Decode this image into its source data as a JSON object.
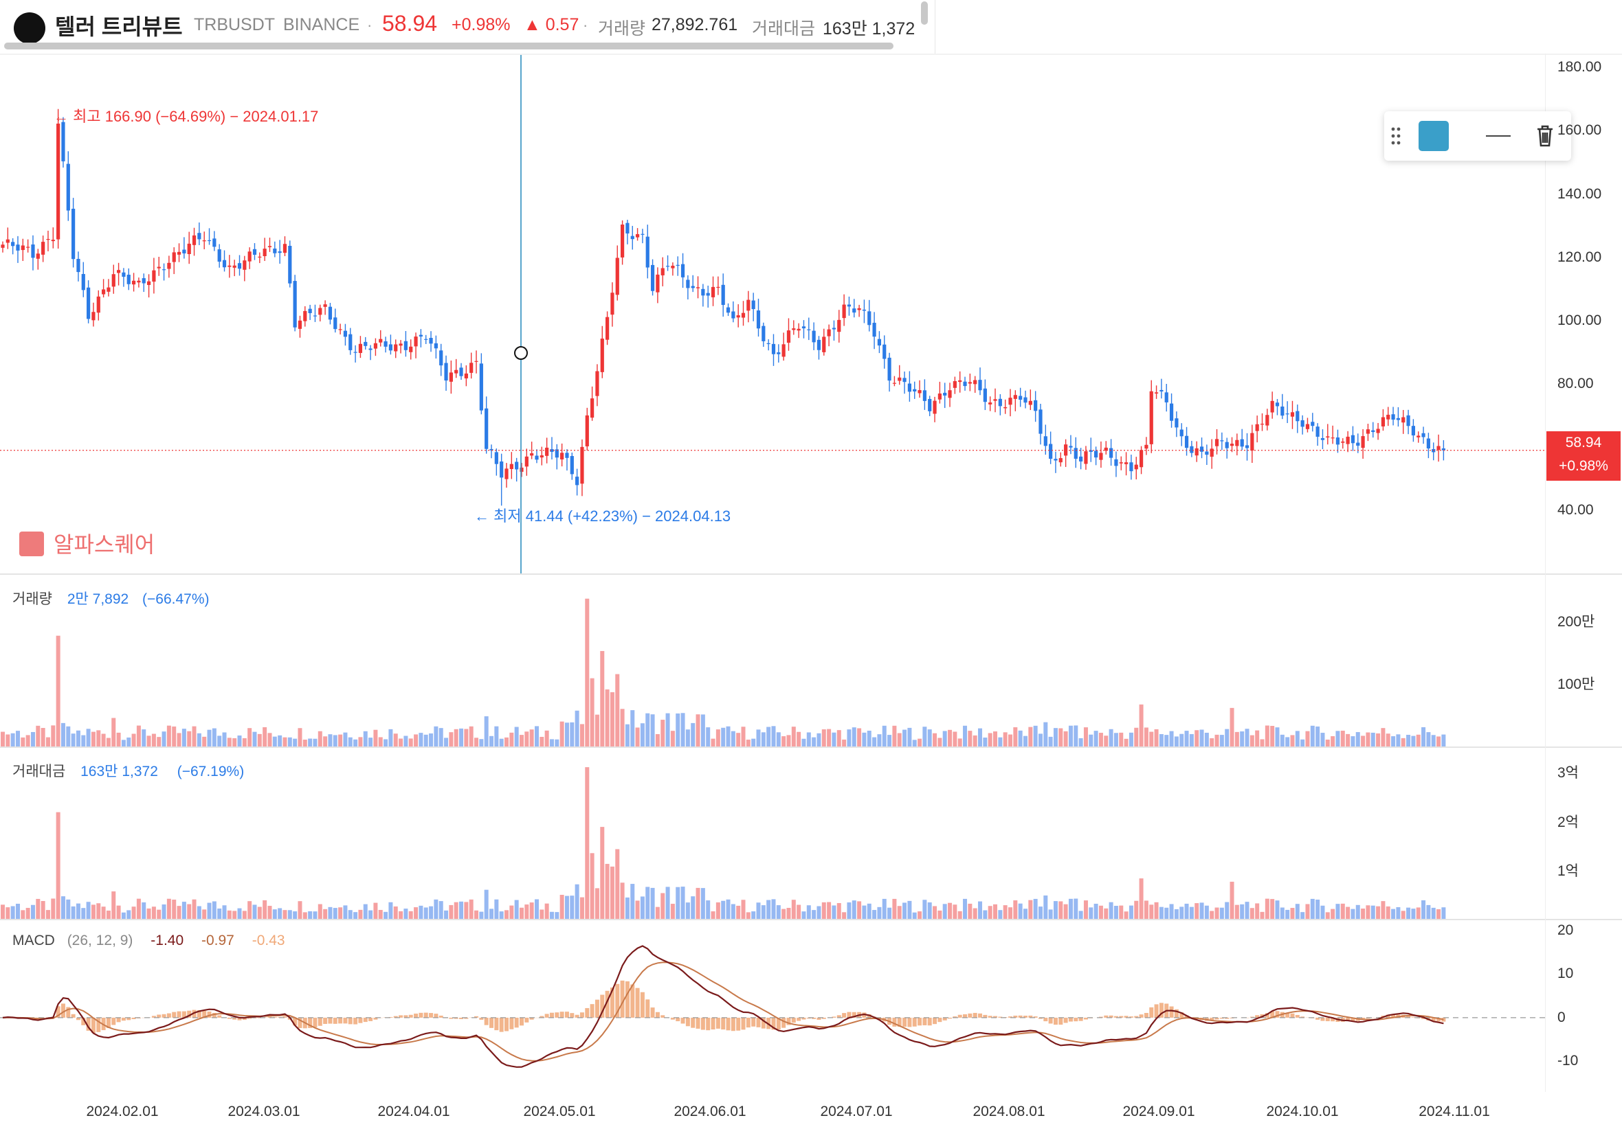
{
  "header": {
    "name": "텔러 트리뷰트",
    "symbol": "TRBUSDT",
    "exchange": "BINANCE",
    "price": "58.94",
    "change_pct": "+0.98%",
    "change_abs": "▲ 0.57",
    "vol_label": "거래량",
    "vol_value": "27,892.761",
    "amount_label": "거래대금",
    "amount_value": "163만 1,372"
  },
  "annotations": {
    "high": "← 최고 166.90 (−64.69%) − 2024.01.17",
    "low": "← 최저 41.44 (+42.23%) − 2024.04.13"
  },
  "price_tag": {
    "price": "58.94",
    "change": "+0.98%"
  },
  "watermark": {
    "icon": "alpha-square-icon",
    "text": "알파스퀘어"
  },
  "toolbar": {
    "icons": [
      "drag-handle-icon",
      "color-swatch",
      "line-style-icon",
      "trash-icon"
    ],
    "swatch_color": "#3a9fc9"
  },
  "panels": {
    "volume": {
      "label": "거래량",
      "value": "2만 7,892",
      "change": "(−66.47%)"
    },
    "amount": {
      "label": "거래대금",
      "value": "163만 1,372",
      "change": "(−67.19%)"
    },
    "macd": {
      "label": "MACD",
      "params": "(26, 12, 9)",
      "v1": "-1.40",
      "v2": "-0.97",
      "v3": "-0.43"
    }
  },
  "colors": {
    "up": "#ee3535",
    "down": "#2b7be6",
    "up_light": "#f5a0a0",
    "down_light": "#96b8f2",
    "macd": "#7a1a1a",
    "signal": "#c8794a",
    "hist": "#f0a878",
    "crosshair": "#2e8fbf"
  },
  "chart_data": {
    "type": "candlestick",
    "x_ticks": [
      "2024.02.01",
      "2024.03.01",
      "2024.04.01",
      "2024.05.01",
      "2024.06.01",
      "2024.07.01",
      "2024.08.01",
      "2024.09.01",
      "2024.10.01",
      "2024.11.01"
    ],
    "price_axis": {
      "ticks": [
        "180.00",
        "160.00",
        "140.00",
        "120.00",
        "100.00",
        "80.00",
        "40.00"
      ],
      "ylim": [
        20,
        184
      ]
    },
    "volume_axis": {
      "ticks": [
        "200만",
        "100만"
      ],
      "ylim": [
        0,
        2500000
      ]
    },
    "amount_axis": {
      "ticks": [
        "3억",
        "2억",
        "1억"
      ],
      "ylim": [
        0,
        320000000
      ]
    },
    "macd_axis": {
      "ticks": [
        "20",
        "10",
        "0",
        "-10"
      ],
      "ylim": [
        -17,
        22
      ]
    },
    "close_anchors": [
      [
        0,
        124
      ],
      [
        6,
        121
      ],
      [
        10,
        128
      ],
      [
        11,
        163
      ],
      [
        14,
        120
      ],
      [
        17,
        101
      ],
      [
        22,
        116
      ],
      [
        27,
        110
      ],
      [
        33,
        120
      ],
      [
        40,
        126
      ],
      [
        45,
        117
      ],
      [
        50,
        120
      ],
      [
        56,
        124
      ],
      [
        58,
        100
      ],
      [
        64,
        103
      ],
      [
        70,
        91
      ],
      [
        78,
        92
      ],
      [
        84,
        95
      ],
      [
        88,
        82
      ],
      [
        94,
        87
      ],
      [
        96,
        59
      ],
      [
        99,
        51
      ],
      [
        105,
        58
      ],
      [
        111,
        57
      ],
      [
        114,
        50
      ],
      [
        116,
        70
      ],
      [
        120,
        100
      ],
      [
        123,
        128
      ],
      [
        127,
        127
      ],
      [
        129,
        111
      ],
      [
        132,
        118
      ],
      [
        137,
        110
      ],
      [
        142,
        110
      ],
      [
        145,
        98
      ],
      [
        148,
        106
      ],
      [
        153,
        89
      ],
      [
        158,
        98
      ],
      [
        162,
        93
      ],
      [
        167,
        103
      ],
      [
        170,
        103
      ],
      [
        173,
        97
      ],
      [
        176,
        83
      ],
      [
        180,
        78
      ],
      [
        184,
        73
      ],
      [
        188,
        80
      ],
      [
        192,
        80
      ],
      [
        196,
        74
      ],
      [
        202,
        76
      ],
      [
        205,
        70
      ],
      [
        208,
        55
      ],
      [
        211,
        61
      ],
      [
        214,
        56
      ],
      [
        219,
        58
      ],
      [
        224,
        54
      ],
      [
        227,
        59
      ],
      [
        228,
        78
      ],
      [
        231,
        74
      ],
      [
        234,
        63
      ],
      [
        238,
        57
      ],
      [
        242,
        61
      ],
      [
        247,
        62
      ],
      [
        252,
        72
      ],
      [
        258,
        69
      ],
      [
        263,
        61
      ],
      [
        268,
        62
      ],
      [
        272,
        66
      ],
      [
        276,
        69
      ],
      [
        280,
        66
      ],
      [
        283,
        61
      ],
      [
        286,
        58
      ]
    ],
    "high": {
      "value": 166.9,
      "date": "2024.01.17"
    },
    "low": {
      "value": 41.44,
      "date": "2024.04.13"
    },
    "last": 58.94
  }
}
